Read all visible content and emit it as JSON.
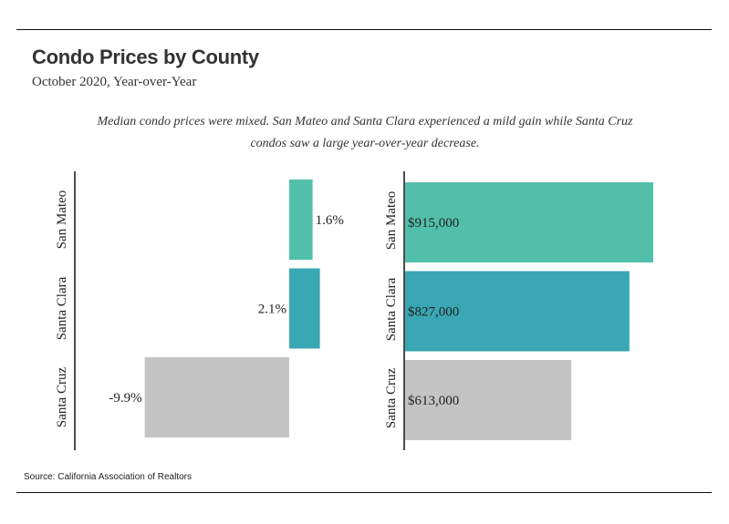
{
  "title": "Condo Prices by County",
  "subtitle": "October 2020, Year-over-Year",
  "note": "Median condo prices were mixed. San Mateo and Santa Clara experienced a mild gain while Santa Cruz condos saw a large year-over-year decrease.",
  "source": "Source:  California Association of Realtors",
  "chart_data": [
    {
      "type": "bar",
      "orientation": "horizontal",
      "categories": [
        "San Mateo",
        "Santa Clara",
        "Santa Cruz"
      ],
      "values": [
        1.6,
        2.1,
        -9.9
      ],
      "labels": [
        "1.6%",
        "2.1%",
        "-9.9%"
      ],
      "colors": [
        "#52bfaa",
        "#3aa7b4",
        "#c4c4c4"
      ]
    },
    {
      "type": "bar",
      "orientation": "horizontal",
      "categories": [
        "San Mateo",
        "Santa Clara",
        "Santa Cruz"
      ],
      "values": [
        915000,
        827000,
        613000
      ],
      "labels": [
        "$915,000",
        "$827,000",
        "$613,000"
      ],
      "colors": [
        "#52bfaa",
        "#3aa7b4",
        "#c4c4c4"
      ]
    }
  ]
}
